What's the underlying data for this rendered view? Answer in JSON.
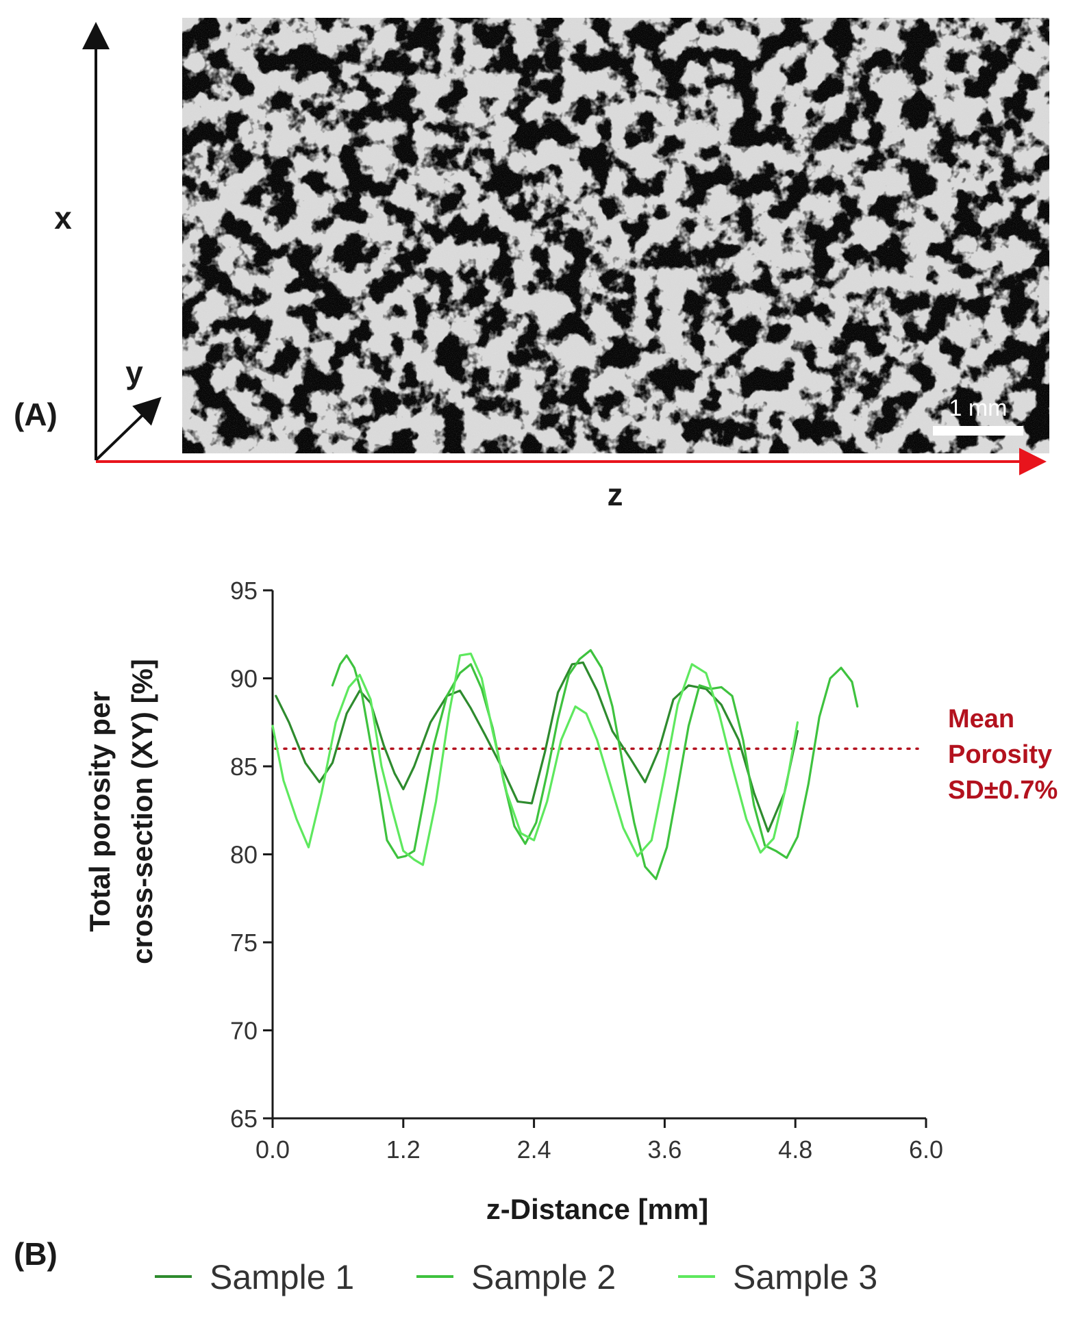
{
  "panel_a": {
    "label": "(A)",
    "axes": {
      "x": "x",
      "y": "y",
      "z": "z"
    },
    "scale_bar": "1 mm",
    "image_description_name": "micro-ct-porous-cross-section",
    "colors": {
      "z_axis": "#e8141c",
      "background": "#050505",
      "struts": "#d9d9d9"
    }
  },
  "panel_b": {
    "label": "(B)",
    "mean_label": [
      "Mean",
      "Porosity",
      "SD±0.7%"
    ],
    "colors": {
      "mean": "#b3121e"
    }
  },
  "chart_data": {
    "type": "line",
    "title": "",
    "xlabel": "z-Distance [mm]",
    "ylabel": [
      "Total porosity per",
      "cross-section (XY) [%]"
    ],
    "xlim": [
      0,
      6.0
    ],
    "ylim": [
      65,
      95
    ],
    "xticks": [
      0.0,
      1.2,
      2.4,
      3.6,
      4.8,
      6.0
    ],
    "xtick_labels": [
      "0.0",
      "1.2",
      "2.4",
      "3.6",
      "4.8",
      "6.0"
    ],
    "yticks": [
      65,
      70,
      75,
      80,
      85,
      90,
      95
    ],
    "ytick_labels": [
      "65",
      "70",
      "75",
      "80",
      "85",
      "90",
      "95"
    ],
    "mean_line": {
      "y": 86.0,
      "style": "dotted",
      "color": "#b3121e"
    },
    "legend_position": "bottom",
    "series": [
      {
        "name": "Sample 1",
        "color": "#2e8b2e",
        "x": [
          0.03,
          0.15,
          0.3,
          0.43,
          0.55,
          0.68,
          0.8,
          0.9,
          1.02,
          1.12,
          1.2,
          1.3,
          1.45,
          1.6,
          1.72,
          1.82,
          1.95,
          2.1,
          2.25,
          2.38,
          2.5,
          2.62,
          2.75,
          2.85,
          2.98,
          3.12,
          3.28,
          3.42,
          3.55,
          3.68,
          3.82,
          3.98,
          4.12,
          4.28,
          4.42,
          4.55,
          4.7,
          4.82
        ],
        "y": [
          89.0,
          87.5,
          85.2,
          84.1,
          85.2,
          88.0,
          89.3,
          88.6,
          86.2,
          84.6,
          83.7,
          85.0,
          87.5,
          89.0,
          89.3,
          88.3,
          86.8,
          85.0,
          83.0,
          82.9,
          85.8,
          89.2,
          90.8,
          90.9,
          89.3,
          87.0,
          85.5,
          84.1,
          86.0,
          88.8,
          89.6,
          89.4,
          88.5,
          86.5,
          83.5,
          81.3,
          83.5,
          87.0
        ]
      },
      {
        "name": "Sample 2",
        "color": "#3ec23e",
        "x": [
          0.55,
          0.62,
          0.68,
          0.75,
          0.82,
          0.9,
          0.98,
          1.05,
          1.15,
          1.22,
          1.3,
          1.38,
          1.48,
          1.6,
          1.72,
          1.82,
          1.92,
          2.02,
          2.12,
          2.22,
          2.32,
          2.42,
          2.52,
          2.62,
          2.72,
          2.82,
          2.92,
          3.02,
          3.12,
          3.22,
          3.32,
          3.42,
          3.52,
          3.62,
          3.72,
          3.82,
          3.92,
          4.02,
          4.12,
          4.22,
          4.32,
          4.42,
          4.52,
          4.62,
          4.72,
          4.82,
          4.92,
          5.02,
          5.12,
          5.22,
          5.32,
          5.37
        ],
        "y": [
          89.6,
          90.8,
          91.3,
          90.6,
          89.1,
          86.3,
          83.5,
          80.8,
          79.8,
          79.9,
          80.2,
          82.8,
          86.2,
          89.0,
          90.3,
          90.8,
          89.4,
          87.2,
          84.2,
          81.6,
          80.6,
          81.8,
          84.6,
          87.7,
          90.2,
          91.1,
          91.6,
          90.6,
          88.4,
          85.0,
          81.8,
          79.3,
          78.6,
          80.4,
          83.8,
          87.3,
          89.6,
          89.4,
          89.5,
          89.0,
          86.5,
          82.8,
          80.5,
          80.2,
          79.8,
          81.0,
          84.0,
          87.8,
          90.0,
          90.6,
          89.8,
          88.4
        ]
      },
      {
        "name": "Sample 3",
        "color": "#5ee85e",
        "x": [
          0.0,
          0.1,
          0.22,
          0.33,
          0.45,
          0.58,
          0.7,
          0.8,
          0.9,
          1.0,
          1.1,
          1.2,
          1.3,
          1.38,
          1.5,
          1.62,
          1.72,
          1.82,
          1.92,
          2.02,
          2.15,
          2.28,
          2.4,
          2.52,
          2.65,
          2.78,
          2.88,
          2.98,
          3.1,
          3.22,
          3.35,
          3.48,
          3.6,
          3.72,
          3.85,
          3.98,
          4.1,
          4.22,
          4.35,
          4.48,
          4.6,
          4.72,
          4.82
        ],
        "y": [
          87.3,
          84.2,
          82.0,
          80.4,
          83.5,
          87.5,
          89.5,
          90.2,
          88.8,
          85.0,
          82.5,
          80.2,
          79.7,
          79.4,
          83.0,
          88.0,
          91.3,
          91.4,
          90.0,
          87.0,
          83.5,
          81.2,
          80.8,
          83.0,
          86.5,
          88.4,
          88.0,
          86.5,
          84.0,
          81.5,
          79.9,
          80.8,
          84.5,
          88.5,
          90.8,
          90.3,
          88.0,
          85.0,
          82.0,
          80.1,
          80.9,
          84.0,
          87.5
        ]
      }
    ]
  }
}
